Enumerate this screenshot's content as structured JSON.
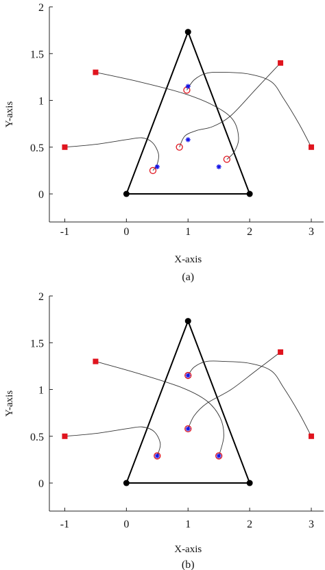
{
  "chart_data": [
    {
      "type": "scatter",
      "caption": "(a)",
      "xlabel": "X-axis",
      "ylabel": "Y-axis",
      "xlim": [
        -1.25,
        3.2
      ],
      "ylim": [
        -0.3,
        2.0
      ],
      "xticks": [
        -1,
        0,
        1,
        2,
        3
      ],
      "yticks": [
        0,
        0.5,
        1,
        1.5,
        2
      ],
      "grid": false,
      "colors": {
        "start": "#e0141e",
        "end": "#e0141e",
        "target": "#1414e6",
        "path": "#333333",
        "triangle": "#000000"
      },
      "triangle": [
        [
          0,
          0
        ],
        [
          2,
          0
        ],
        [
          1,
          1.732
        ]
      ],
      "start_points": [
        [
          -1,
          0.5
        ],
        [
          -0.5,
          1.3
        ],
        [
          2.5,
          1.4
        ],
        [
          3,
          0.5
        ]
      ],
      "end_points": [
        [
          0.43,
          0.25
        ],
        [
          0.86,
          0.5
        ],
        [
          1.63,
          0.37
        ],
        [
          0.98,
          1.11
        ]
      ],
      "targets": [
        [
          0.5,
          0.29
        ],
        [
          1.0,
          0.58
        ],
        [
          1.5,
          0.29
        ],
        [
          1.0,
          1.15
        ]
      ],
      "paths": [
        [
          [
            -1,
            0.5
          ],
          [
            -0.5,
            0.53
          ],
          [
            0,
            0.58
          ],
          [
            0.25,
            0.6
          ],
          [
            0.42,
            0.55
          ],
          [
            0.52,
            0.43
          ],
          [
            0.5,
            0.32
          ],
          [
            0.43,
            0.25
          ]
        ],
        [
          [
            -0.5,
            1.3
          ],
          [
            0.2,
            1.2
          ],
          [
            0.9,
            1.08
          ],
          [
            1.4,
            0.95
          ],
          [
            1.72,
            0.8
          ],
          [
            1.82,
            0.6
          ],
          [
            1.75,
            0.45
          ],
          [
            1.63,
            0.37
          ]
        ],
        [
          [
            2.5,
            1.4
          ],
          [
            2.1,
            1.12
          ],
          [
            1.7,
            0.84
          ],
          [
            1.4,
            0.72
          ],
          [
            1.15,
            0.68
          ],
          [
            0.95,
            0.62
          ],
          [
            0.86,
            0.5
          ]
        ],
        [
          [
            3,
            0.5
          ],
          [
            2.8,
            0.75
          ],
          [
            2.55,
            1.02
          ],
          [
            2.35,
            1.2
          ],
          [
            2.0,
            1.28
          ],
          [
            1.6,
            1.3
          ],
          [
            1.3,
            1.29
          ],
          [
            1.1,
            1.22
          ],
          [
            0.98,
            1.11
          ]
        ]
      ]
    },
    {
      "type": "scatter",
      "caption": "(b)",
      "xlabel": "X-axis",
      "ylabel": "Y-axis",
      "xlim": [
        -1.25,
        3.2
      ],
      "ylim": [
        -0.3,
        2.0
      ],
      "xticks": [
        -1,
        0,
        1,
        2,
        3
      ],
      "yticks": [
        0,
        0.5,
        1,
        1.5,
        2
      ],
      "grid": false,
      "colors": {
        "start": "#e0141e",
        "end": "#e0141e",
        "target": "#1414e6",
        "path": "#333333",
        "triangle": "#000000"
      },
      "triangle": [
        [
          0,
          0
        ],
        [
          2,
          0
        ],
        [
          1,
          1.732
        ]
      ],
      "start_points": [
        [
          -1,
          0.5
        ],
        [
          -0.5,
          1.3
        ],
        [
          2.5,
          1.4
        ],
        [
          3,
          0.5
        ]
      ],
      "end_points": [
        [
          0.5,
          0.29
        ],
        [
          1.5,
          0.29
        ],
        [
          1.0,
          0.58
        ],
        [
          1.0,
          1.15
        ]
      ],
      "targets": [
        [
          0.5,
          0.29
        ],
        [
          1.0,
          0.58
        ],
        [
          1.5,
          0.29
        ],
        [
          1.0,
          1.15
        ]
      ],
      "paths": [
        [
          [
            -1,
            0.5
          ],
          [
            -0.5,
            0.53
          ],
          [
            0,
            0.58
          ],
          [
            0.25,
            0.6
          ],
          [
            0.45,
            0.55
          ],
          [
            0.55,
            0.42
          ],
          [
            0.5,
            0.29
          ]
        ],
        [
          [
            -0.5,
            1.3
          ],
          [
            0.2,
            1.17
          ],
          [
            0.9,
            1.02
          ],
          [
            1.3,
            0.88
          ],
          [
            1.52,
            0.7
          ],
          [
            1.58,
            0.5
          ],
          [
            1.5,
            0.29
          ]
        ],
        [
          [
            2.5,
            1.4
          ],
          [
            2.1,
            1.2
          ],
          [
            1.7,
            1.0
          ],
          [
            1.3,
            0.85
          ],
          [
            1.1,
            0.72
          ],
          [
            1.0,
            0.58
          ]
        ],
        [
          [
            3,
            0.5
          ],
          [
            2.8,
            0.75
          ],
          [
            2.55,
            1.02
          ],
          [
            2.35,
            1.2
          ],
          [
            2.0,
            1.28
          ],
          [
            1.6,
            1.3
          ],
          [
            1.3,
            1.3
          ],
          [
            1.1,
            1.24
          ],
          [
            1.0,
            1.15
          ]
        ]
      ]
    }
  ]
}
